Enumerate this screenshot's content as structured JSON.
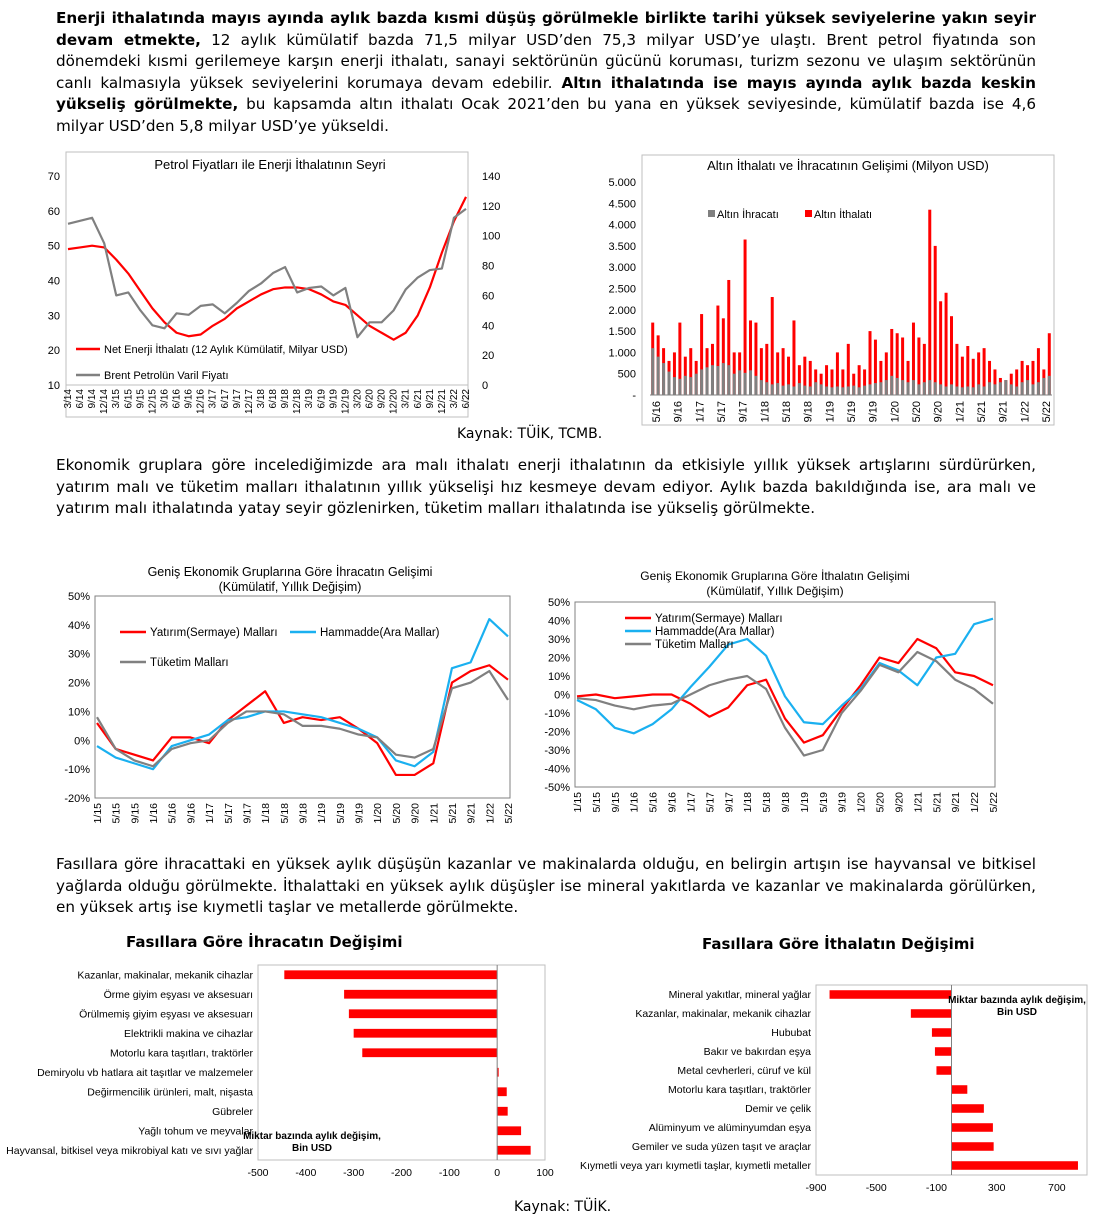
{
  "paragraphs": {
    "p1_b1": "Enerji ithalatında mayıs ayında aylık bazda kısmi düşüş görülmekle birlikte tarihi yüksek seviyelerine yakın seyir devam etmekte,",
    "p1_t1": " 12 aylık kümülatif bazda 71,5 milyar USD’den 75,3 milyar USD’ye ulaştı. Brent petrol fiyatında son dönemdeki kısmi gerilemeye karşın enerji ithalatı, sanayi sektörünün gücünü koruması, turizm sezonu ve ulaşım sektörünün canlı kalmasıyla yüksek seviyelerini korumaya devam edebilir.",
    "p1_b2": " Altın ithalatında ise mayıs ayında aylık bazda keskin yükseliş görülmekte,",
    "p1_t2": " bu kapsamda altın ithalatı Ocak 2021’den bu yana en yüksek seviyesinde, kümülatif bazda ise 4,6 milyar USD’den 5,8 milyar USD’ye yükseldi.",
    "p2": "Ekonomik gruplara göre incelediğimizde ara malı ithalatı enerji ithalatının da etkisiyle yıllık yüksek artışlarını sürdürürken, yatırım malı ve tüketim malları ithalatının yıllık yükselişi hız kesmeye devam ediyor. Aylık bazda bakıldığında ise, ara malı ve yatırım malı ithalatında yatay seyir gözlenirken, tüketim malları ithalatında ise yükseliş görülmekte.",
    "p3": "Fasıllara göre ihracattaki en yüksek aylık düşüşün kazanlar ve makinalarda olduğu, en belirgin artışın ise hayvansal ve bitkisel yağlarda olduğu görülmekte. İthalattaki en yüksek aylık düşüşler ise mineral yakıtlarda ve kazanlar ve makinalarda görülürken, en yüksek artış ise kıymetli taşlar ve metallerde görülmekte."
  },
  "sources": {
    "s1": "Kaynak: TÜİK, TCMB.",
    "s2": "Kaynak: TÜİK."
  },
  "colors": {
    "red": "#ff0000",
    "gray": "#808080",
    "blue": "#1ab0f0"
  },
  "chart_data": [
    {
      "id": "petrol",
      "type": "line",
      "title": "Petrol Fiyatları ile Enerji İthalatının Seyri",
      "x": [
        "3/14",
        "6/14",
        "9/14",
        "12/14",
        "3/15",
        "6/15",
        "9/15",
        "12/15",
        "3/16",
        "6/16",
        "9/16",
        "12/16",
        "3/17",
        "6/17",
        "9/17",
        "12/17",
        "3/18",
        "6/18",
        "9/18",
        "12/18",
        "3/19",
        "6/19",
        "9/19",
        "12/19",
        "3/20",
        "6/20",
        "9/20",
        "12/20",
        "3/21",
        "6/21",
        "9/21",
        "12/21",
        "3/22",
        "6/22"
      ],
      "ylim_left": [
        10,
        70
      ],
      "yticks_left": [
        10,
        20,
        30,
        40,
        50,
        60,
        70
      ],
      "ylim_right": [
        0,
        140
      ],
      "yticks_right": [
        0,
        20,
        40,
        60,
        80,
        100,
        120,
        140
      ],
      "series": [
        {
          "name": "Net Enerji İthalatı (12 Aylık Kümülatif, Milyar USD)",
          "axis": "left",
          "color": "#ff0000",
          "values": [
            49,
            49.5,
            50,
            49.5,
            46,
            42,
            37,
            32,
            28,
            25,
            24,
            24.5,
            27,
            29,
            32,
            34,
            36,
            37.5,
            38,
            38,
            37.5,
            36,
            34,
            33,
            30,
            27,
            25,
            23,
            25,
            30,
            38,
            48,
            57,
            64
          ]
        },
        {
          "name": "Brent Petrolün Varil Fiyatı",
          "axis": "right",
          "color": "#808080",
          "values": [
            108,
            110,
            112,
            95,
            60,
            62,
            50,
            40,
            38,
            48,
            47,
            53,
            54,
            48,
            55,
            63,
            68,
            75,
            79,
            62,
            65,
            66,
            60,
            65,
            32,
            42,
            42,
            50,
            64,
            72,
            77,
            78,
            112,
            118
          ]
        }
      ]
    },
    {
      "id": "altin",
      "type": "bar",
      "title": "Altın İthalatı ve İhracatının Gelişimi (Milyon USD)",
      "ylim": [
        0,
        5000
      ],
      "yticks": [
        "-",
        "500",
        "1.000",
        "1.500",
        "2.000",
        "2.500",
        "3.000",
        "3.500",
        "4.000",
        "4.500",
        "5.000"
      ],
      "xticks": [
        "5/16",
        "9/16",
        "1/17",
        "5/17",
        "9/17",
        "1/18",
        "5/18",
        "9/18",
        "1/19",
        "5/19",
        "9/19",
        "1/20",
        "5/20",
        "9/20",
        "1/21",
        "5/21",
        "9/21",
        "1/22",
        "5/22"
      ],
      "series": [
        {
          "name": "Altın İhracatı",
          "color": "#808080",
          "values": [
            1100,
            900,
            750,
            550,
            420,
            380,
            450,
            420,
            500,
            600,
            650,
            700,
            680,
            750,
            700,
            500,
            580,
            520,
            580,
            450,
            350,
            300,
            250,
            280,
            220,
            250,
            200,
            280,
            220,
            200,
            300,
            250,
            200,
            180,
            200,
            180,
            200,
            220,
            180,
            220,
            250,
            280,
            300,
            350,
            450,
            400,
            350,
            300,
            350,
            250,
            300,
            350,
            300,
            250,
            200,
            250,
            200,
            180,
            200,
            180,
            250,
            200,
            300,
            250,
            300,
            350,
            250,
            200,
            300,
            350,
            250,
            300,
            400,
            450
          ]
        },
        {
          "name": "Altın İthalatı",
          "color": "#ff0000",
          "values": [
            1700,
            1400,
            1100,
            800,
            1000,
            1700,
            900,
            1100,
            800,
            1900,
            1100,
            1200,
            2100,
            1800,
            2700,
            1000,
            1000,
            3650,
            1750,
            1700,
            1100,
            1200,
            2300,
            1000,
            1100,
            900,
            1750,
            700,
            900,
            800,
            600,
            500,
            700,
            600,
            1000,
            600,
            1200,
            500,
            700,
            600,
            1500,
            1300,
            800,
            1000,
            1550,
            1450,
            1350,
            800,
            1700,
            1350,
            1200,
            4350,
            3500,
            2200,
            2400,
            1850,
            1200,
            900,
            1150,
            850,
            1000,
            1100,
            800,
            600,
            400,
            350,
            500,
            600,
            800,
            700,
            800,
            1100,
            600,
            1450
          ]
        }
      ]
    },
    {
      "id": "ihracat_grup",
      "type": "line",
      "title": "Geniş Ekonomik Gruplarına Göre İhracatın Gelişimi",
      "subtitle": "(Kümülatif, Yıllık Değişim)",
      "x": [
        "1/15",
        "5/15",
        "9/15",
        "1/16",
        "5/16",
        "9/16",
        "1/17",
        "5/17",
        "9/17",
        "1/18",
        "5/18",
        "9/18",
        "1/19",
        "5/19",
        "9/19",
        "1/20",
        "5/20",
        "9/20",
        "1/21",
        "5/21",
        "9/21",
        "1/22",
        "5/22"
      ],
      "ylim": [
        -20,
        50
      ],
      "yticks": [
        "-20%",
        "-10%",
        "0%",
        "10%",
        "20%",
        "30%",
        "40%",
        "50%"
      ],
      "series": [
        {
          "name": "Yatırım(Sermaye) Malları",
          "color": "#ff0000",
          "values": [
            6,
            -3,
            -5,
            -7,
            1,
            1,
            -1,
            7,
            12,
            17,
            6,
            8,
            7,
            8,
            4,
            -1,
            -12,
            -12,
            -8,
            20,
            24,
            26,
            21
          ]
        },
        {
          "name": "Hammadde(Ara Mallar)",
          "color": "#1ab0f0",
          "values": [
            -2,
            -6,
            -8,
            -10,
            -2,
            0,
            2,
            7,
            8,
            10,
            10,
            9,
            8,
            6,
            4,
            1,
            -7,
            -9,
            -4,
            25,
            27,
            42,
            36
          ]
        },
        {
          "name": "Tüketim Malları",
          "color": "#808080",
          "values": [
            8,
            -3,
            -7,
            -9,
            -3,
            -1,
            0,
            6,
            10,
            10,
            9,
            5,
            5,
            4,
            2,
            1,
            -5,
            -6,
            -3,
            18,
            20,
            24,
            14
          ]
        }
      ]
    },
    {
      "id": "ithalat_grup",
      "type": "line",
      "title": "Geniş Ekonomik Gruplarına Göre İthalatın Gelişimi",
      "subtitle": "(Kümülatif, Yıllık Değişim)",
      "x": [
        "1/15",
        "5/15",
        "9/15",
        "1/16",
        "5/16",
        "9/16",
        "1/17",
        "5/17",
        "9/17",
        "1/18",
        "5/18",
        "9/18",
        "1/19",
        "5/19",
        "9/19",
        "1/20",
        "5/20",
        "9/20",
        "1/21",
        "5/21",
        "9/21",
        "1/22",
        "5/22"
      ],
      "ylim": [
        -50,
        50
      ],
      "yticks": [
        "-50%",
        "-40%",
        "-30%",
        "-20%",
        "-10%",
        "0%",
        "10%",
        "20%",
        "30%",
        "40%",
        "50%"
      ],
      "series": [
        {
          "name": "Yatırım(Sermaye) Malları",
          "color": "#ff0000",
          "values": [
            -1,
            0,
            -2,
            -1,
            0,
            0,
            -5,
            -12,
            -7,
            5,
            8,
            -13,
            -26,
            -22,
            -8,
            5,
            20,
            17,
            30,
            25,
            12,
            10,
            5
          ]
        },
        {
          "name": "Hammadde(Ara Mallar)",
          "color": "#1ab0f0",
          "values": [
            -3,
            -8,
            -18,
            -21,
            -16,
            -8,
            4,
            15,
            27,
            30,
            21,
            -1,
            -15,
            -16,
            -6,
            3,
            17,
            13,
            5,
            20,
            22,
            38,
            41
          ]
        },
        {
          "name": "Tüketim Malları",
          "color": "#808080",
          "values": [
            -2,
            -3,
            -6,
            -8,
            -6,
            -5,
            0,
            5,
            8,
            10,
            3,
            -18,
            -33,
            -30,
            -10,
            2,
            16,
            12,
            23,
            18,
            8,
            3,
            -5
          ]
        }
      ]
    },
    {
      "id": "ihracat_fasil",
      "type": "bar",
      "orientation": "horizontal",
      "title": "Fasıllara Göre İhracatın Değişimi",
      "note": "Miktar bazında aylık değişim, Bin USD",
      "xlim": [
        -500,
        100
      ],
      "xticks": [
        -500,
        -400,
        -300,
        -200,
        -100,
        0,
        100
      ],
      "categories": [
        "Kazanlar, makinalar, mekanik cihazlar",
        "Örme giyim eşyası ve aksesuarı",
        "Örülmemiş giyim eşyası ve aksesuarı",
        "Elektrikli makina ve cihazlar",
        "Motorlu kara taşıtları, traktörler",
        "Demiryolu vb hatlara ait taşıtlar ve malzemeler",
        "Değirmencilik ürünleri, malt, nişasta",
        "Gübreler",
        "Yağlı tohum ve meyvalar",
        "Hayvansal, bitkisel veya mikrobiyal katı ve sıvı yağlar"
      ],
      "values": [
        -445,
        -320,
        -310,
        -300,
        -282,
        3,
        20,
        22,
        50,
        70
      ]
    },
    {
      "id": "ithalat_fasil",
      "type": "bar",
      "orientation": "horizontal",
      "title": "Fasıllara Göre İthalatın Değişimi",
      "note": "Miktar bazında aylık değişim, Bin USD",
      "xlim": [
        -900,
        900
      ],
      "xticks": [
        -900,
        -500,
        -100,
        300,
        700
      ],
      "categories": [
        "Mineral yakıtlar, mineral yağlar",
        "Kazanlar, makinalar, mekanik cihazlar",
        "Hububat",
        "Bakır ve bakırdan eşya",
        "Metal cevherleri, cüruf ve kül",
        "Motorlu kara taşıtları, traktörler",
        "Demir ve çelik",
        "Alüminyum ve alüminyumdan eşya",
        "Gemiler ve suda yüzen taşıt ve araçlar",
        "Kıymetli veya yarı kıymetli taşlar, kıymetli metaller"
      ],
      "values": [
        -810,
        -270,
        -130,
        -110,
        -100,
        105,
        215,
        275,
        280,
        840
      ]
    }
  ]
}
